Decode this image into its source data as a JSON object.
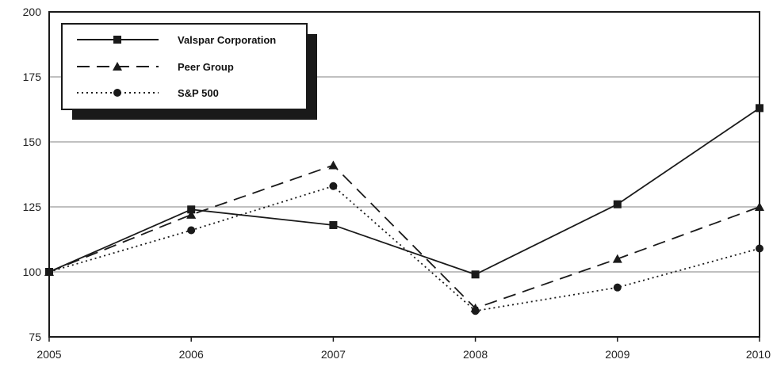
{
  "chart_data": {
    "type": "line",
    "title": "",
    "xlabel": "",
    "ylabel": "",
    "categories": [
      "2005",
      "2006",
      "2007",
      "2008",
      "2009",
      "2010"
    ],
    "ylim": [
      75,
      200
    ],
    "yticks": [
      75,
      100,
      125,
      150,
      175,
      200
    ],
    "grid": true,
    "legend_position": "top-left",
    "series": [
      {
        "name": "Valspar Corporation",
        "values": [
          100,
          124,
          118,
          99,
          126,
          163
        ],
        "marker": "square",
        "dash": "solid",
        "color": "#1a1a1a"
      },
      {
        "name": "Peer Group",
        "values": [
          100,
          122,
          141,
          86,
          105,
          125
        ],
        "marker": "triangle",
        "dash": "dashed",
        "color": "#1a1a1a"
      },
      {
        "name": "S&P 500",
        "values": [
          100,
          116,
          133,
          85,
          94,
          109
        ],
        "marker": "circle",
        "dash": "dotted",
        "color": "#1a1a1a"
      }
    ]
  }
}
